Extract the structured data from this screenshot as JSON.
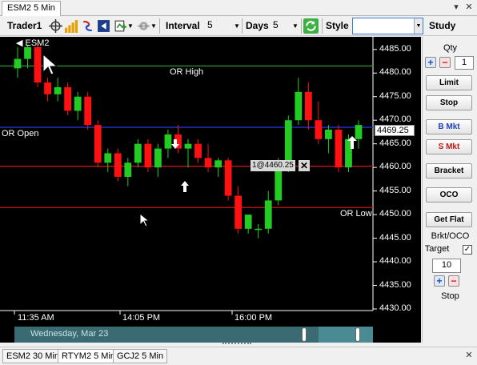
{
  "window": {
    "active_tab": "ESM2 5 Min",
    "pin_glyph": "▾",
    "close_glyph": "✕"
  },
  "toolbar": {
    "account": "Trader1",
    "interval_label": "Interval",
    "interval_value": "5",
    "days_label": "Days",
    "days_value": "5",
    "style_label": "Style",
    "style_value": "",
    "study_label": "Study"
  },
  "chart": {
    "symbol_label": "◀ ESM2",
    "price_ticks": [
      "4485.00",
      "4480.00",
      "4475.00",
      "4470.00",
      "4465.00",
      "4460.00",
      "4455.00",
      "4450.00",
      "4445.00",
      "4440.00",
      "4435.00",
      "4430.00"
    ],
    "time_ticks": [
      "11:35 AM",
      "14:05 PM",
      "16:00 PM"
    ],
    "last_price": "4469.25",
    "order_tag": "1@4460.25",
    "order_close": "✕",
    "lines": {
      "or_high": {
        "label": "OR High",
        "price": 4481.5,
        "color": "#2e8b2e"
      },
      "or_open": {
        "label": "OR Open",
        "price": 4468.5,
        "color": "#2233cc"
      },
      "or_low": {
        "label": "OR Low",
        "price": 4451.5,
        "color": "#d01010"
      },
      "order": {
        "price": 4460.25,
        "color": "#c01818"
      }
    },
    "timeline_date": "Wednesday, Mar 23",
    "colors": {
      "up": "#22cc22",
      "down": "#ff1111",
      "background": "#000000",
      "grid": "#ffffff"
    }
  },
  "chart_data": {
    "type": "candlestick",
    "ylim": [
      4430,
      4487
    ],
    "x_ticks": [
      "11:35 AM",
      "14:05 PM",
      "16:00 PM"
    ],
    "candles": [
      {
        "o": 4481,
        "h": 4485.5,
        "l": 4479,
        "c": 4483
      },
      {
        "o": 4483,
        "h": 4486,
        "l": 4481,
        "c": 4485.5
      },
      {
        "o": 4485.5,
        "h": 4486.5,
        "l": 4477,
        "c": 4478
      },
      {
        "o": 4478,
        "h": 4479,
        "l": 4474,
        "c": 4475.5
      },
      {
        "o": 4475.5,
        "h": 4479,
        "l": 4474,
        "c": 4477
      },
      {
        "o": 4477,
        "h": 4478,
        "l": 4471,
        "c": 4472
      },
      {
        "o": 4472,
        "h": 4476,
        "l": 4470,
        "c": 4475
      },
      {
        "o": 4475,
        "h": 4476,
        "l": 4468,
        "c": 4469
      },
      {
        "o": 4469,
        "h": 4470,
        "l": 4460,
        "c": 4461
      },
      {
        "o": 4461,
        "h": 4464,
        "l": 4459,
        "c": 4463
      },
      {
        "o": 4463,
        "h": 4464,
        "l": 4457,
        "c": 4458
      },
      {
        "o": 4458,
        "h": 4462,
        "l": 4456,
        "c": 4461
      },
      {
        "o": 4461,
        "h": 4466,
        "l": 4460,
        "c": 4465
      },
      {
        "o": 4465,
        "h": 4466,
        "l": 4459,
        "c": 4460
      },
      {
        "o": 4460,
        "h": 4465,
        "l": 4458,
        "c": 4464
      },
      {
        "o": 4464,
        "h": 4468,
        "l": 4462,
        "c": 4467
      },
      {
        "o": 4467,
        "h": 4469,
        "l": 4463,
        "c": 4464
      },
      {
        "o": 4464,
        "h": 4466,
        "l": 4460,
        "c": 4465
      },
      {
        "o": 4465,
        "h": 4466,
        "l": 4461,
        "c": 4462
      },
      {
        "o": 4462,
        "h": 4465,
        "l": 4459,
        "c": 4460
      },
      {
        "o": 4460,
        "h": 4462,
        "l": 4458,
        "c": 4461.5
      },
      {
        "o": 4461.5,
        "h": 4462,
        "l": 4453,
        "c": 4454
      },
      {
        "o": 4454,
        "h": 4456,
        "l": 4446,
        "c": 4447
      },
      {
        "o": 4447,
        "h": 4450,
        "l": 4446,
        "c": 4450
      },
      {
        "o": 4447,
        "h": 4448,
        "l": 4445,
        "c": 4447
      },
      {
        "o": 4447,
        "h": 4455,
        "l": 4446,
        "c": 4453
      },
      {
        "o": 4453,
        "h": 4462,
        "l": 4452,
        "c": 4460
      },
      {
        "o": 4460,
        "h": 4471,
        "l": 4459,
        "c": 4470
      },
      {
        "o": 4470,
        "h": 4479,
        "l": 4469,
        "c": 4476
      },
      {
        "o": 4476,
        "h": 4478,
        "l": 4468,
        "c": 4470
      },
      {
        "o": 4470,
        "h": 4474,
        "l": 4465,
        "c": 4466
      },
      {
        "o": 4466,
        "h": 4469,
        "l": 4463,
        "c": 4468
      },
      {
        "o": 4468,
        "h": 4469,
        "l": 4459,
        "c": 4460
      },
      {
        "o": 4460,
        "h": 4467,
        "l": 4459,
        "c": 4466
      },
      {
        "o": 4466,
        "h": 4470,
        "l": 4464,
        "c": 4469
      }
    ]
  },
  "panel": {
    "qty_label": "Qty",
    "qty_value": "1",
    "buttons": {
      "limit": "Limit",
      "stop": "Stop",
      "buy_market": "B Mkt",
      "sell_market": "S Mkt",
      "bracket": "Bracket",
      "oco": "OCO",
      "get_flat": "Get Flat"
    },
    "brkt_oco_label": "Brkt/OCO",
    "target_label": "Target",
    "target_value": "10",
    "stop_label": "Stop"
  },
  "bottom_tabs": [
    "ESM2 30 Min",
    "RTYM2 5 Min",
    "GCJ2 5 Min"
  ]
}
